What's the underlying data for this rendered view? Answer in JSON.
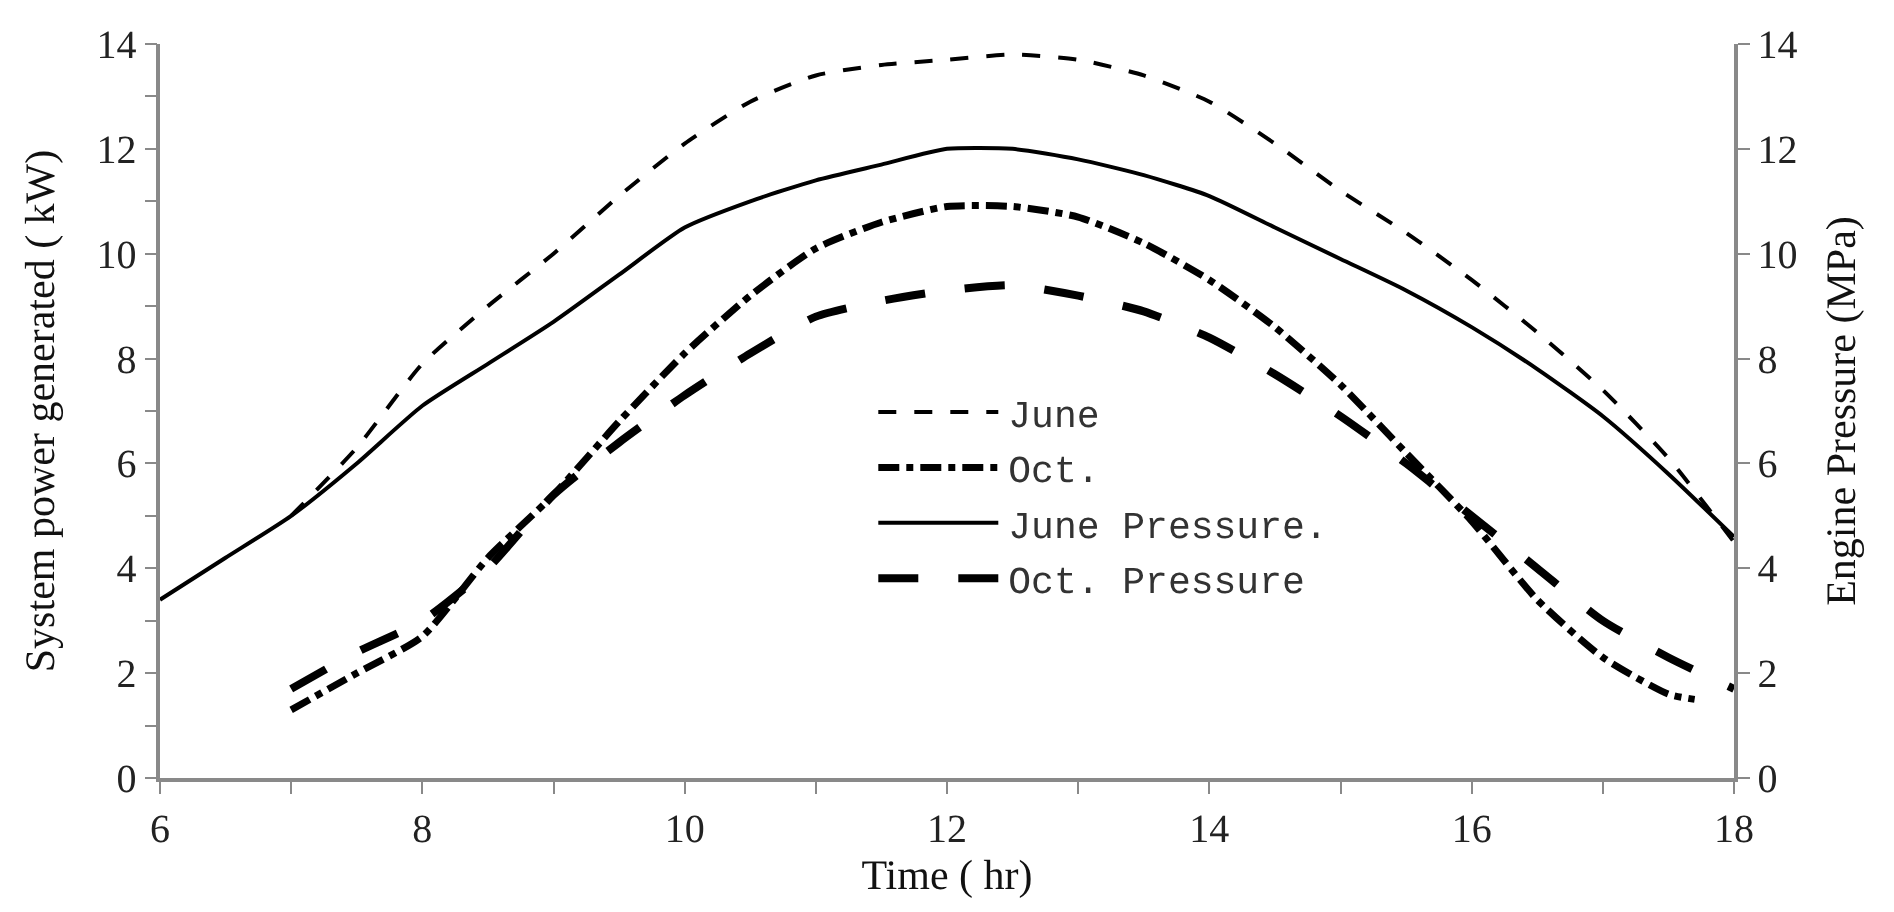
{
  "chart_data": {
    "type": "line",
    "xlabel": "Time ( hr)",
    "ylabel": "System power generated ( kW)",
    "y2label": "Engine Pressure (MPa)",
    "xlim": [
      6,
      18
    ],
    "ylim": [
      0,
      14
    ],
    "y2lim": [
      0,
      14
    ],
    "xticks": [
      6,
      {
        "value": 7,
        "label": null
      },
      8,
      {
        "value": 9,
        "label": null
      },
      10,
      {
        "value": 11,
        "label": null
      },
      12,
      {
        "value": 13,
        "label": null
      },
      14,
      {
        "value": 15,
        "label": null
      },
      16,
      {
        "value": 17,
        "label": null
      },
      18
    ],
    "yticks": [
      0,
      {
        "value": 1,
        "label": null
      },
      2,
      {
        "value": 3,
        "label": null
      },
      4,
      {
        "value": 5,
        "label": null
      },
      6,
      {
        "value": 7,
        "label": null
      },
      8,
      {
        "value": 9,
        "label": null
      },
      10,
      {
        "value": 11,
        "label": null
      },
      12,
      {
        "value": 13,
        "label": null
      },
      14
    ],
    "y2ticks": [
      0,
      2,
      4,
      6,
      8,
      10,
      12,
      14
    ],
    "legend": "center",
    "marker": "none",
    "series": [
      {
        "name": "June",
        "color": "#000000",
        "line_style": "dashed",
        "x": [
          7,
          7.5,
          8,
          8.5,
          9,
          9.5,
          10,
          10.5,
          11,
          11.5,
          12,
          12.5,
          13,
          13.5,
          14,
          14.5,
          15,
          15.5,
          16,
          16.5,
          17,
          17.5,
          18
        ],
        "values": [
          5.0,
          6.3,
          7.9,
          9.0,
          10.0,
          11.1,
          12.1,
          12.9,
          13.4,
          13.6,
          13.7,
          13.8,
          13.7,
          13.4,
          12.9,
          12.1,
          11.2,
          10.4,
          9.5,
          8.5,
          7.4,
          6.1,
          4.5
        ]
      },
      {
        "name": "Oct.",
        "color": "#000000",
        "line_style": "dashdot",
        "x": [
          7,
          7.5,
          8,
          8.5,
          9,
          9.5,
          10,
          10.5,
          11,
          11.5,
          12,
          12.5,
          13,
          13.5,
          14,
          14.5,
          15,
          15.5,
          16,
          16.5,
          17,
          17.5,
          17.7
        ],
        "values": [
          1.3,
          2.0,
          2.7,
          4.2,
          5.4,
          6.8,
          8.1,
          9.2,
          10.1,
          10.6,
          10.9,
          10.9,
          10.7,
          10.2,
          9.5,
          8.6,
          7.5,
          6.2,
          4.9,
          3.4,
          2.3,
          1.6,
          1.5
        ]
      },
      {
        "name": "June Pressure.",
        "color": "#000000",
        "line_style": "solid",
        "axis": "y2",
        "x": [
          6,
          6.5,
          7,
          7.5,
          8,
          8.5,
          9,
          9.5,
          10,
          10.5,
          11,
          11.5,
          12,
          12.5,
          13,
          13.5,
          14,
          14.5,
          15,
          15.5,
          16,
          16.5,
          17,
          17.5,
          18
        ],
        "values": [
          3.4,
          4.2,
          5.0,
          6.0,
          7.1,
          7.9,
          8.7,
          9.6,
          10.5,
          11.0,
          11.4,
          11.7,
          12.0,
          12.0,
          11.8,
          11.5,
          11.1,
          10.5,
          9.9,
          9.3,
          8.6,
          7.8,
          6.9,
          5.8,
          4.6
        ]
      },
      {
        "name": "Oct. Pressure",
        "color": "#000000",
        "line_style": "longdash",
        "axis": "y2",
        "x": [
          7,
          7.5,
          8,
          8.5,
          9,
          9.5,
          10,
          10.5,
          11,
          11.5,
          12,
          12.5,
          13,
          13.5,
          14,
          14.5,
          15,
          15.5,
          16,
          16.5,
          17,
          17.5,
          18
        ],
        "values": [
          1.7,
          2.4,
          3.0,
          4.0,
          5.4,
          6.4,
          7.3,
          8.1,
          8.8,
          9.1,
          9.3,
          9.4,
          9.2,
          8.9,
          8.4,
          7.7,
          6.9,
          6.0,
          5.0,
          4.0,
          3.0,
          2.3,
          1.7
        ]
      }
    ]
  }
}
